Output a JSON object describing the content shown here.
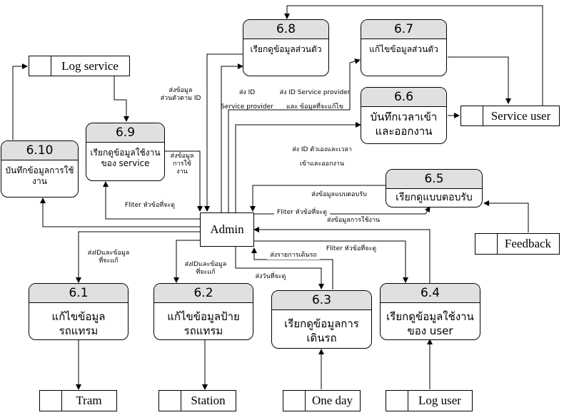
{
  "processes": {
    "p68": {
      "number": "6.8",
      "label": "เรียกดูข้อมูลส่วนตัว"
    },
    "p67": {
      "number": "6.7",
      "label": "แก้ไขข้อมูลส่วนตัว"
    },
    "p66": {
      "number": "6.6",
      "label": "บันทึกเวลาเข้า\nและออกงาน"
    },
    "p65": {
      "number": "6.5",
      "label": "เรียกดูแบบตอบรับ"
    },
    "p69": {
      "number": "6.9",
      "label": "เรียกดูข้อมูลใช้งาน\nของ service"
    },
    "p610": {
      "number": "6.10",
      "label": "บันทึกข้อมูลการใช้\nงาน"
    },
    "p61": {
      "number": "6.1",
      "label": "แก้ไขข้อมูล\nรถแทรม"
    },
    "p62": {
      "number": "6.2",
      "label": "แก้ไขข้อมูลป้าย\nรถแทรม"
    },
    "p63": {
      "number": "6.3",
      "label": "เรียกดูข้อมูลการ\nเดินรถ"
    },
    "p64": {
      "number": "6.4",
      "label": "เรียกดูข้อมูลใช้งาน\nของ user"
    }
  },
  "stores": {
    "log_service": "Log service",
    "service_user": "Service user",
    "feedback": "Feedback",
    "tram": "Tram",
    "station": "Station",
    "one_day": "One day",
    "log_user": "Log user"
  },
  "entity": {
    "admin": "Admin"
  },
  "flows": {
    "f_send_personal": "ส่งข้อมูล\nส่วนตัวตาม ID",
    "f_id_sp": "ส่ง ID\nService provider",
    "f_id_sp_edit": "ส่ง ID Service provider\nและ ข้อมูลที่จะแก้ไข",
    "f_time": "ส่ง ID ตัวเองและเวลา\nเข้าและออกงาน",
    "f_send_usage": "ส่งข้อมูล\nการใช้\nงาน",
    "f_filter_service": "Fliter หัวข้อที่จะดู",
    "f_send_feedback": "ส่งข้อมูลแบบตอบรับ",
    "f_filter_feedback": "Fliter หัวข้อที่จะดู",
    "f_send_user_usage": "ส่งข้อมูลการใช้งาน",
    "f_send_route": "ส่งรายการเดินรถ",
    "f_filter_user": "Fliter หัวข้อที่จะดู",
    "f_send_day": "ส่งวันที่จะดู",
    "f_edit_tram": "ส่งIDและข้อมูล\nที่จะแก้",
    "f_edit_station": "ส่งIDและข้อมูล\nที่จะแก้"
  },
  "colors": {
    "header_fill": "#e0e0e0",
    "stroke": "#000000",
    "background": "#ffffff"
  }
}
